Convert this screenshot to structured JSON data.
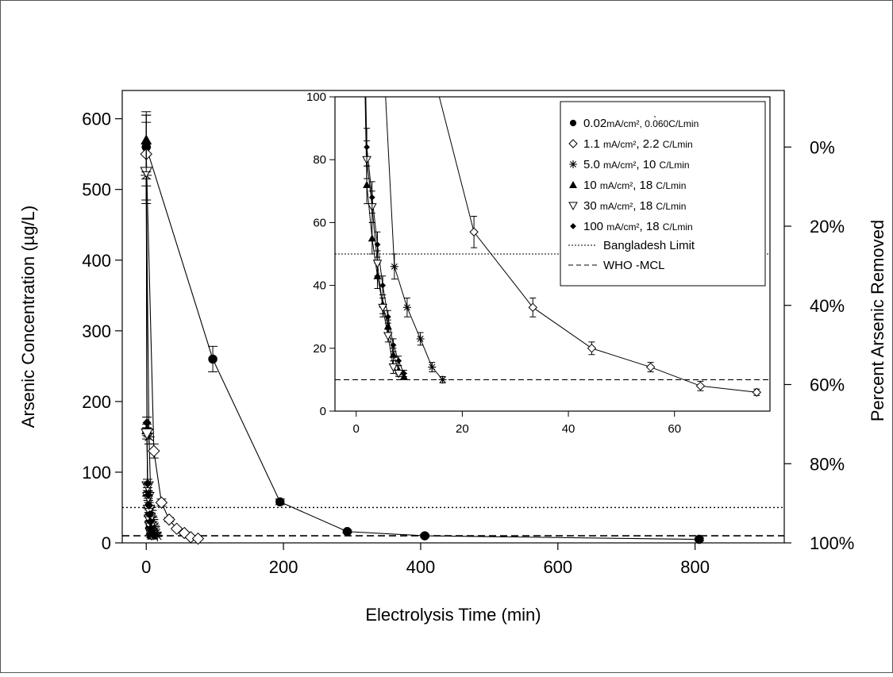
{
  "chart_data": [
    {
      "type": "scatter",
      "xlabel": "Electrolysis Time (min)",
      "ylabel": "Arsenic Concentration (µg/L)",
      "y2label": "Percent Arsenic Removed",
      "xlim": [
        -35,
        930
      ],
      "ylim": [
        0,
        640
      ],
      "xticks": [
        0,
        200,
        400,
        600,
        800
      ],
      "yticks": [
        0,
        100,
        200,
        300,
        400,
        500,
        600
      ],
      "y2ticks": [
        {
          "value": 560,
          "label": "0%"
        },
        {
          "value": 448,
          "label": "20%"
        },
        {
          "value": 336,
          "label": "40%"
        },
        {
          "value": 224,
          "label": "60%"
        },
        {
          "value": 112,
          "label": "80%"
        },
        {
          "value": 0,
          "label": "100%"
        }
      ],
      "reference_lines": [
        {
          "name": "Bangladesh Limit",
          "y": 50,
          "style": "dotted"
        },
        {
          "name": "WHO -MCL",
          "y": 10,
          "style": "dashed"
        }
      ],
      "series": [
        {
          "marker": "circle",
          "x": [
            0,
            97,
            195,
            293,
            406,
            806
          ],
          "y": [
            560,
            260,
            58,
            16,
            10,
            5
          ],
          "err": [
            45,
            18,
            4,
            2,
            2,
            2
          ]
        },
        {
          "marker": "diamond",
          "x": [
            0,
            11.1,
            22.2,
            33.3,
            44.4,
            55.5,
            64.9,
            75.5
          ],
          "y": [
            550,
            130,
            57,
            33,
            20,
            14,
            8,
            6
          ],
          "err": [
            45,
            10,
            5,
            3,
            2,
            1.5,
            1.5,
            1
          ]
        },
        {
          "marker": "star",
          "x": [
            0,
            4,
            7.2,
            9.6,
            12.1,
            14.3,
            16.3
          ],
          "y": [
            520,
            150,
            46,
            33,
            23,
            14,
            10
          ],
          "err": [
            40,
            10,
            4,
            3,
            2,
            1.5,
            1
          ]
        },
        {
          "marker": "triangle-up",
          "x": [
            0,
            1,
            2,
            3,
            4,
            5,
            6,
            7,
            8,
            9
          ],
          "y": [
            570,
            160,
            72,
            55,
            43,
            34,
            27,
            18,
            13,
            11
          ],
          "err": [
            40,
            8,
            6,
            5,
            4,
            3,
            2,
            2,
            1.5,
            1
          ]
        },
        {
          "marker": "triangle-down",
          "x": [
            0,
            1,
            2,
            3,
            4,
            5,
            6,
            7,
            8
          ],
          "y": [
            525,
            155,
            80,
            65,
            47,
            33,
            24,
            14,
            12
          ],
          "err": [
            40,
            8,
            6,
            5,
            4,
            3,
            2,
            2,
            1
          ]
        },
        {
          "marker": "small-diamond",
          "x": [
            0,
            1,
            2,
            3,
            4,
            5,
            6,
            7,
            8,
            9
          ],
          "y": [
            565,
            170,
            84,
            68,
            53,
            40,
            30,
            21,
            16,
            12
          ],
          "err": [
            40,
            8,
            6,
            5,
            4,
            3,
            2,
            2,
            1.5,
            1
          ]
        }
      ]
    },
    {
      "type": "scatter",
      "inset": true,
      "xlim": [
        -4,
        78
      ],
      "ylim": [
        0,
        100
      ],
      "xticks": [
        0,
        20,
        40,
        60
      ],
      "yticks": [
        0,
        20,
        40,
        60,
        80,
        100
      ],
      "legend_position": "top-right",
      "legend": [
        {
          "marker": "circle",
          "main": "0.02",
          "sub": "mA/cm², 0.060",
          "sub2": "C/Lmin"
        },
        {
          "marker": "diamond",
          "main": "1.1 ",
          "sub": "mA/cm²",
          "main2": ", 2.2 ",
          "sub2": "C/Lmin"
        },
        {
          "marker": "star",
          "main": "5.0 ",
          "sub": "mA/cm²",
          "main2": ", 10 ",
          "sub2": "C/Lmin"
        },
        {
          "marker": "triangle-up",
          "main": "10 ",
          "sub": "mA/cm²",
          "main2": ", 18 ",
          "sub2": "C/Lmin"
        },
        {
          "marker": "triangle-down",
          "main": "30 ",
          "sub": "mA/cm²",
          "main2": ", 18 ",
          "sub2": "C/Lmin"
        },
        {
          "marker": "small-diamond",
          "main": "100 ",
          "sub": "mA/cm²",
          "main2": ", 18 ",
          "sub2": "C/Lmin"
        },
        {
          "marker": "dotted-line",
          "main": "Bangladesh Limit"
        },
        {
          "marker": "dashed-line",
          "main": "WHO -MCL"
        }
      ]
    }
  ]
}
